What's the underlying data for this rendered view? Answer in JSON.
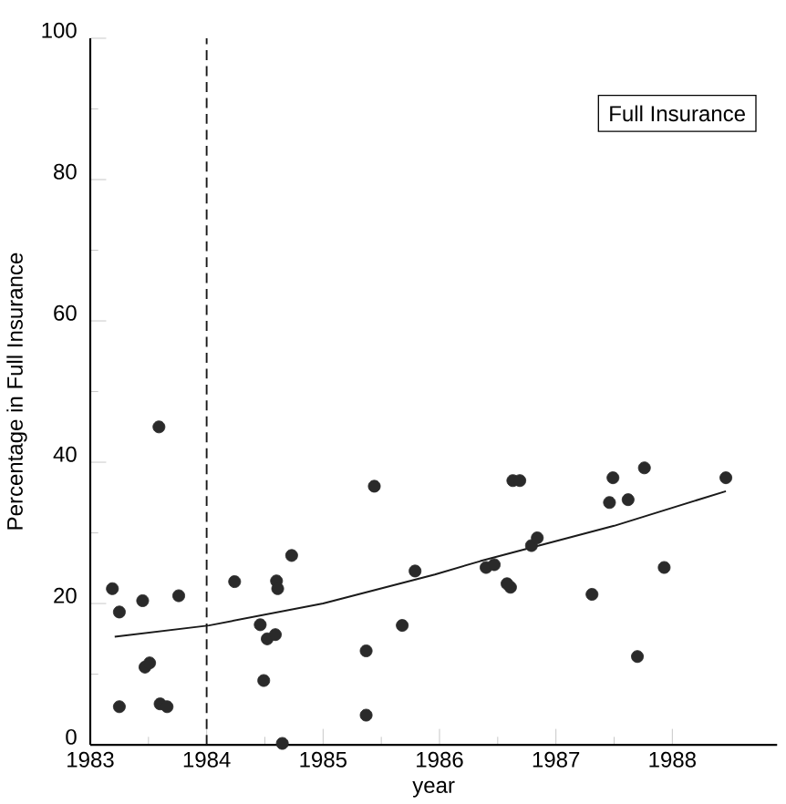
{
  "chart_data": {
    "type": "scatter",
    "xlabel": "year",
    "ylabel": "Percentage in Full Insurance",
    "xlim": [
      1983,
      1988.9
    ],
    "ylim": [
      0,
      100
    ],
    "xticks": [
      1983,
      1984,
      1985,
      1986,
      1987,
      1988
    ],
    "yticks": [
      0,
      20,
      40,
      60,
      80,
      100
    ],
    "grid": false,
    "annotations": [
      "Full Insurance"
    ],
    "ref_lines": [
      {
        "axis": "x",
        "value": 1984,
        "line_style": "dashed",
        "color": "#1a1a1a"
      }
    ],
    "series": [
      {
        "marker": "circle",
        "color": "#2a2a2a",
        "x": [
          1983.19,
          1983.25,
          1983.25,
          1983.45,
          1983.47,
          1983.51,
          1983.59,
          1983.6,
          1983.66,
          1983.76,
          1984.24,
          1984.6,
          1984.61,
          1984.73,
          1984.46,
          1984.52,
          1984.59,
          1984.49,
          1984.65,
          1985.44,
          1985.79,
          1985.68,
          1985.37,
          1985.37,
          1986.4,
          1986.47,
          1986.61,
          1986.58,
          1986.63,
          1986.69,
          1986.79,
          1986.84,
          1987.31,
          1987.46,
          1987.49,
          1987.62,
          1987.76,
          1987.7,
          1987.93,
          1988.46
        ],
        "values": [
          22.1,
          18.8,
          5.4,
          20.4,
          11.0,
          11.6,
          45.0,
          5.8,
          5.4,
          21.1,
          23.1,
          23.2,
          22.1,
          26.8,
          17.0,
          15.0,
          15.6,
          9.1,
          0.2,
          36.6,
          24.6,
          16.9,
          13.3,
          4.2,
          25.1,
          25.5,
          22.3,
          22.8,
          37.4,
          37.4,
          28.2,
          29.3,
          21.3,
          34.3,
          37.8,
          34.7,
          39.2,
          12.5,
          25.1,
          37.8
        ]
      },
      {
        "type": "line",
        "marker": "none",
        "line_style": "solid",
        "color": "#1a1a1a",
        "x": [
          1983.21,
          1984.02,
          1985.0,
          1985.96,
          1986.35,
          1987.5,
          1988.46
        ],
        "values": [
          15.3,
          16.9,
          20.0,
          24.1,
          26.0,
          31.0,
          35.9
        ]
      }
    ]
  }
}
